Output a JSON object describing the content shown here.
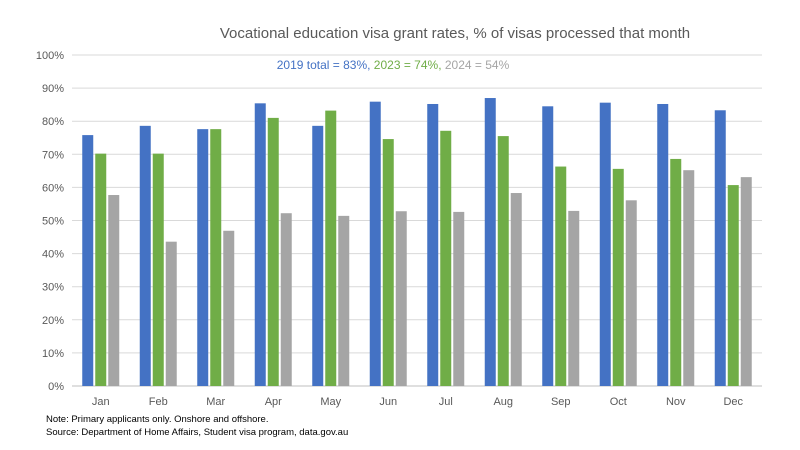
{
  "chart_data": {
    "type": "bar",
    "title": "Vocational education visa grant rates, % of visas processed that month",
    "subtitle": [
      {
        "text": "2019 total = 83%,",
        "color": "#4472C4"
      },
      {
        "text": "2023 = 74%,",
        "color": "#70AD47"
      },
      {
        "text": "2024 = 54%",
        "color": "#A5A5A5"
      }
    ],
    "categories": [
      "Jan",
      "Feb",
      "Mar",
      "Apr",
      "May",
      "Jun",
      "Jul",
      "Aug",
      "Sep",
      "Oct",
      "Nov",
      "Dec"
    ],
    "series": [
      {
        "key": "2019",
        "color": "#4472C4",
        "values": [
          75.8,
          78.6,
          77.6,
          85.4,
          78.6,
          85.9,
          85.2,
          87.0,
          84.5,
          85.6,
          85.2,
          83.3
        ]
      },
      {
        "key": "2023",
        "color": "#70AD47",
        "values": [
          70.2,
          70.2,
          77.6,
          81.0,
          83.2,
          74.6,
          77.1,
          75.5,
          66.3,
          65.6,
          68.6,
          60.7
        ]
      },
      {
        "key": "2024",
        "color": "#A5A5A5",
        "values": [
          57.7,
          43.6,
          46.9,
          52.2,
          51.4,
          52.8,
          52.6,
          58.3,
          52.9,
          56.1,
          65.2,
          63.1
        ]
      }
    ],
    "yticks": [
      "0%",
      "10%",
      "20%",
      "30%",
      "40%",
      "50%",
      "60%",
      "70%",
      "80%",
      "90%",
      "100%"
    ],
    "ylim": [
      0,
      100
    ],
    "grid": true,
    "xlabel": "",
    "ylabel": ""
  },
  "notes": {
    "line1": "Note: Primary applicants only. Onshore and offshore.",
    "line2": "Source: Department of Home Affairs,  Student visa program, data.gov.au"
  }
}
